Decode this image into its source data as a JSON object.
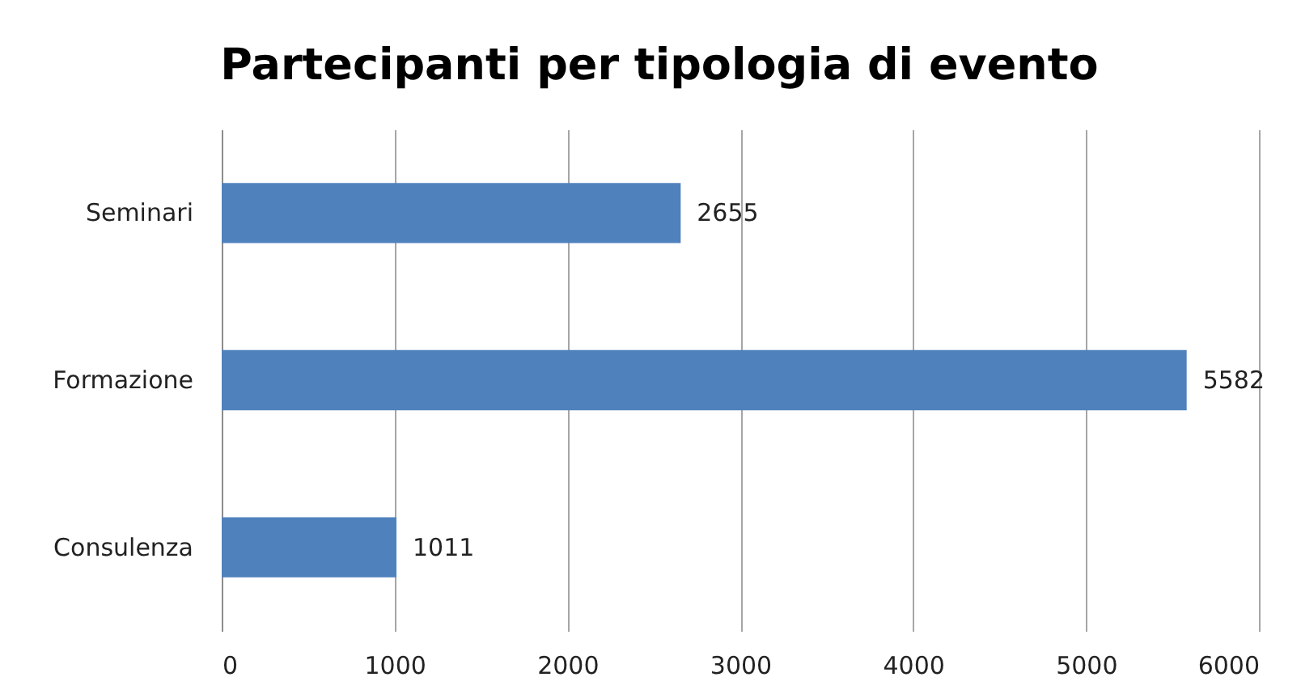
{
  "chart_data": {
    "type": "bar",
    "orientation": "horizontal",
    "title": "Partecipanti per tipologia di evento",
    "categories": [
      "Seminari",
      "Formazione",
      "Consulenza"
    ],
    "values": [
      2655,
      5582,
      1011
    ],
    "color": "#4f81bd",
    "xlim": [
      0,
      6000
    ],
    "xticks": [
      0,
      1000,
      2000,
      3000,
      4000,
      5000,
      6000
    ],
    "grid": "x",
    "data_labels": true
  }
}
